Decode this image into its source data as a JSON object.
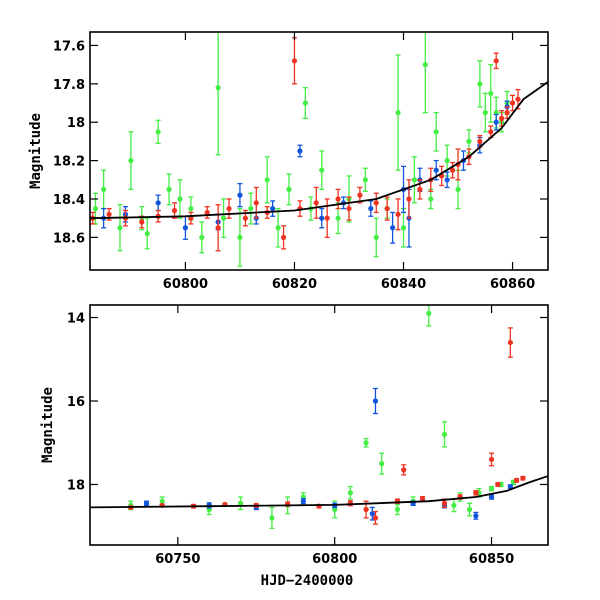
{
  "chart_data": [
    {
      "type": "scatter",
      "title": "",
      "xlabel": "",
      "ylabel": "Magnitude",
      "xlim": [
        60782.5,
        60866.5
      ],
      "ylim": [
        18.77,
        17.53
      ],
      "y_inverted": true,
      "x_ticks": [
        60800,
        60820,
        60840,
        60860
      ],
      "y_ticks": [
        17.6,
        17.8,
        18,
        18.2,
        18.4,
        18.6
      ],
      "x_tick_labels": [
        "60800",
        "60820",
        "60840",
        "60860"
      ],
      "y_tick_labels": [
        "17.6",
        "17.8",
        "18",
        "18.2",
        "18.4",
        "18.6"
      ],
      "colors": {
        "green": "#44ee44",
        "blue": "#1155dd",
        "red": "#ee3322",
        "model": "#000000"
      },
      "model_curve": {
        "x": [
          60782.5,
          60800,
          60820,
          60835,
          60845,
          60852,
          60858,
          60862,
          60866.5
        ],
        "y": [
          18.5,
          18.49,
          18.46,
          18.4,
          18.3,
          18.18,
          18.03,
          17.88,
          17.79
        ]
      },
      "series": [
        {
          "color_key": "green",
          "points": [
            [
              60783.5,
              18.45,
              0.08
            ],
            [
              60785,
              18.35,
              0.1
            ],
            [
              60788,
              18.55,
              0.12
            ],
            [
              60790,
              18.2,
              0.15
            ],
            [
              60792,
              18.5,
              0.06
            ],
            [
              60793,
              18.58,
              0.08
            ],
            [
              60795,
              18.05,
              0.06
            ],
            [
              60797,
              18.35,
              0.08
            ],
            [
              60799,
              18.4,
              0.1
            ],
            [
              60801,
              18.45,
              0.06
            ],
            [
              60803,
              18.6,
              0.08
            ],
            [
              60806,
              17.82,
              0.35
            ],
            [
              60807,
              18.5,
              0.1
            ],
            [
              60810,
              18.6,
              0.15
            ],
            [
              60812,
              18.45,
              0.08
            ],
            [
              60815,
              18.3,
              0.12
            ],
            [
              60817,
              18.55,
              0.1
            ],
            [
              60819,
              18.35,
              0.08
            ],
            [
              60822,
              17.9,
              0.08
            ],
            [
              60823,
              18.45,
              0.06
            ],
            [
              60825,
              18.25,
              0.1
            ],
            [
              60828,
              18.5,
              0.08
            ],
            [
              60830,
              18.4,
              0.12
            ],
            [
              60833,
              18.3,
              0.06
            ],
            [
              60835,
              18.6,
              0.1
            ],
            [
              60837,
              18.45,
              0.05
            ],
            [
              60839,
              17.95,
              0.3
            ],
            [
              60840,
              18.55,
              0.1
            ],
            [
              60842,
              18.3,
              0.12
            ],
            [
              60844,
              17.7,
              0.25
            ],
            [
              60845,
              18.4,
              0.05
            ],
            [
              60846,
              18.05,
              0.1
            ],
            [
              60848,
              18.2,
              0.08
            ],
            [
              60850,
              18.35,
              0.1
            ],
            [
              60852,
              18.1,
              0.06
            ],
            [
              60854,
              17.8,
              0.12
            ],
            [
              60855,
              17.95,
              0.1
            ],
            [
              60856,
              17.85,
              0.15
            ],
            [
              60857,
              17.95,
              0.08
            ],
            [
              60858,
              18.0,
              0.05
            ],
            [
              60859,
              17.9,
              0.06
            ]
          ]
        },
        {
          "color_key": "blue",
          "points": [
            [
              60785,
              18.5,
              0.05
            ],
            [
              60789,
              18.48,
              0.04
            ],
            [
              60795,
              18.42,
              0.04
            ],
            [
              60800,
              18.55,
              0.06
            ],
            [
              60806,
              18.52,
              0.04
            ],
            [
              60810,
              18.38,
              0.06
            ],
            [
              60813,
              18.5,
              0.03
            ],
            [
              60816,
              18.45,
              0.04
            ],
            [
              60821,
              18.15,
              0.03
            ],
            [
              60825,
              18.5,
              0.05
            ],
            [
              60829,
              18.42,
              0.03
            ],
            [
              60834,
              18.45,
              0.04
            ],
            [
              60838,
              18.55,
              0.08
            ],
            [
              60840,
              18.35,
              0.12
            ],
            [
              60841,
              18.5,
              0.15
            ],
            [
              60843,
              18.3,
              0.06
            ],
            [
              60846,
              18.25,
              0.05
            ],
            [
              60848,
              18.3,
              0.04
            ],
            [
              60851,
              18.2,
              0.05
            ],
            [
              60854,
              18.12,
              0.04
            ],
            [
              60857,
              18.0,
              0.04
            ],
            [
              60859,
              17.92,
              0.03
            ]
          ]
        },
        {
          "color_key": "red",
          "points": [
            [
              60783,
              18.5,
              0.03
            ],
            [
              60786,
              18.48,
              0.03
            ],
            [
              60789,
              18.5,
              0.04
            ],
            [
              60792,
              18.52,
              0.03
            ],
            [
              60795,
              18.49,
              0.03
            ],
            [
              60798,
              18.46,
              0.04
            ],
            [
              60801,
              18.5,
              0.03
            ],
            [
              60804,
              18.47,
              0.03
            ],
            [
              60806,
              18.55,
              0.12
            ],
            [
              60808,
              18.45,
              0.05
            ],
            [
              60811,
              18.5,
              0.04
            ],
            [
              60813,
              18.42,
              0.08
            ],
            [
              60815,
              18.47,
              0.03
            ],
            [
              60818,
              18.6,
              0.06
            ],
            [
              60820,
              17.68,
              0.12
            ],
            [
              60821,
              18.45,
              0.04
            ],
            [
              60824,
              18.42,
              0.08
            ],
            [
              60826,
              18.5,
              0.1
            ],
            [
              60828,
              18.4,
              0.05
            ],
            [
              60830,
              18.45,
              0.06
            ],
            [
              60832,
              18.38,
              0.04
            ],
            [
              60835,
              18.42,
              0.05
            ],
            [
              60837,
              18.45,
              0.06
            ],
            [
              60839,
              18.48,
              0.08
            ],
            [
              60841,
              18.4,
              0.1
            ],
            [
              60843,
              18.35,
              0.05
            ],
            [
              60845,
              18.3,
              0.06
            ],
            [
              60847,
              18.28,
              0.05
            ],
            [
              60849,
              18.25,
              0.04
            ],
            [
              60850,
              18.22,
              0.08
            ],
            [
              60852,
              18.18,
              0.04
            ],
            [
              60854,
              18.1,
              0.03
            ],
            [
              60856,
              18.05,
              0.03
            ],
            [
              60857,
              17.68,
              0.04
            ],
            [
              60858,
              17.98,
              0.04
            ],
            [
              60859,
              17.95,
              0.03
            ],
            [
              60860,
              17.9,
              0.04
            ],
            [
              60861,
              17.88,
              0.05
            ]
          ]
        }
      ]
    },
    {
      "type": "scatter",
      "title": "",
      "xlabel": "HJD−2400000",
      "ylabel": "Magnitude",
      "xlim": [
        60722,
        60868
      ],
      "ylim": [
        19.45,
        13.7
      ],
      "y_inverted": true,
      "x_ticks": [
        60750,
        60800,
        60850
      ],
      "y_ticks": [
        14,
        16,
        18
      ],
      "x_tick_labels": [
        "60750",
        "60800",
        "60850"
      ],
      "y_tick_labels": [
        "14",
        "16",
        "18"
      ],
      "colors": {
        "green": "#44ee44",
        "blue": "#1155dd",
        "red": "#ee3322",
        "model": "#000000"
      },
      "model_curve": {
        "x": [
          60722,
          60760,
          60800,
          60830,
          60845,
          60855,
          60862,
          60868
        ],
        "y": [
          18.55,
          18.52,
          18.49,
          18.4,
          18.3,
          18.15,
          17.95,
          17.8
        ]
      },
      "series": [
        {
          "color_key": "green",
          "points": [
            [
              60735,
              18.5,
              0.1
            ],
            [
              60745,
              18.4,
              0.1
            ],
            [
              60760,
              18.6,
              0.12
            ],
            [
              60770,
              18.45,
              0.15
            ],
            [
              60780,
              18.8,
              0.25
            ],
            [
              60785,
              18.5,
              0.2
            ],
            [
              60790,
              18.3,
              0.1
            ],
            [
              60800,
              18.6,
              0.2
            ],
            [
              60805,
              18.2,
              0.15
            ],
            [
              60810,
              17.0,
              0.1
            ],
            [
              60815,
              17.5,
              0.25
            ],
            [
              60820,
              18.6,
              0.12
            ],
            [
              60825,
              18.4,
              0.1
            ],
            [
              60830,
              13.9,
              0.3
            ],
            [
              60835,
              16.8,
              0.3
            ],
            [
              60838,
              18.5,
              0.15
            ],
            [
              60840,
              18.3,
              0.1
            ],
            [
              60843,
              18.6,
              0.15
            ],
            [
              60846,
              18.2,
              0.1
            ],
            [
              60850,
              18.1,
              0.05
            ],
            [
              60853,
              18.0,
              0.05
            ],
            [
              60857,
              17.95,
              0.05
            ]
          ]
        },
        {
          "color_key": "blue",
          "points": [
            [
              60740,
              18.45,
              0.05
            ],
            [
              60760,
              18.5,
              0.06
            ],
            [
              60775,
              18.55,
              0.05
            ],
            [
              60790,
              18.4,
              0.06
            ],
            [
              60800,
              18.5,
              0.05
            ],
            [
              60812,
              18.7,
              0.15
            ],
            [
              60813,
              16.0,
              0.3
            ],
            [
              60825,
              18.45,
              0.05
            ],
            [
              60835,
              18.5,
              0.06
            ],
            [
              60845,
              18.75,
              0.08
            ],
            [
              60850,
              18.3,
              0.05
            ],
            [
              60856,
              18.05,
              0.04
            ]
          ]
        },
        {
          "color_key": "red",
          "points": [
            [
              60735,
              18.55,
              0.03
            ],
            [
              60745,
              18.5,
              0.03
            ],
            [
              60755,
              18.52,
              0.04
            ],
            [
              60765,
              18.48,
              0.03
            ],
            [
              60775,
              18.5,
              0.04
            ],
            [
              60785,
              18.47,
              0.05
            ],
            [
              60795,
              18.52,
              0.04
            ],
            [
              60805,
              18.45,
              0.06
            ],
            [
              60810,
              18.6,
              0.2
            ],
            [
              60813,
              18.8,
              0.15
            ],
            [
              60820,
              18.4,
              0.05
            ],
            [
              60822,
              17.65,
              0.12
            ],
            [
              60828,
              18.35,
              0.06
            ],
            [
              60835,
              18.45,
              0.1
            ],
            [
              60840,
              18.3,
              0.05
            ],
            [
              60845,
              18.2,
              0.05
            ],
            [
              60850,
              17.4,
              0.15
            ],
            [
              60852,
              18.0,
              0.04
            ],
            [
              60856,
              14.6,
              0.35
            ],
            [
              60858,
              17.9,
              0.04
            ],
            [
              60860,
              17.85,
              0.04
            ]
          ]
        }
      ]
    }
  ]
}
